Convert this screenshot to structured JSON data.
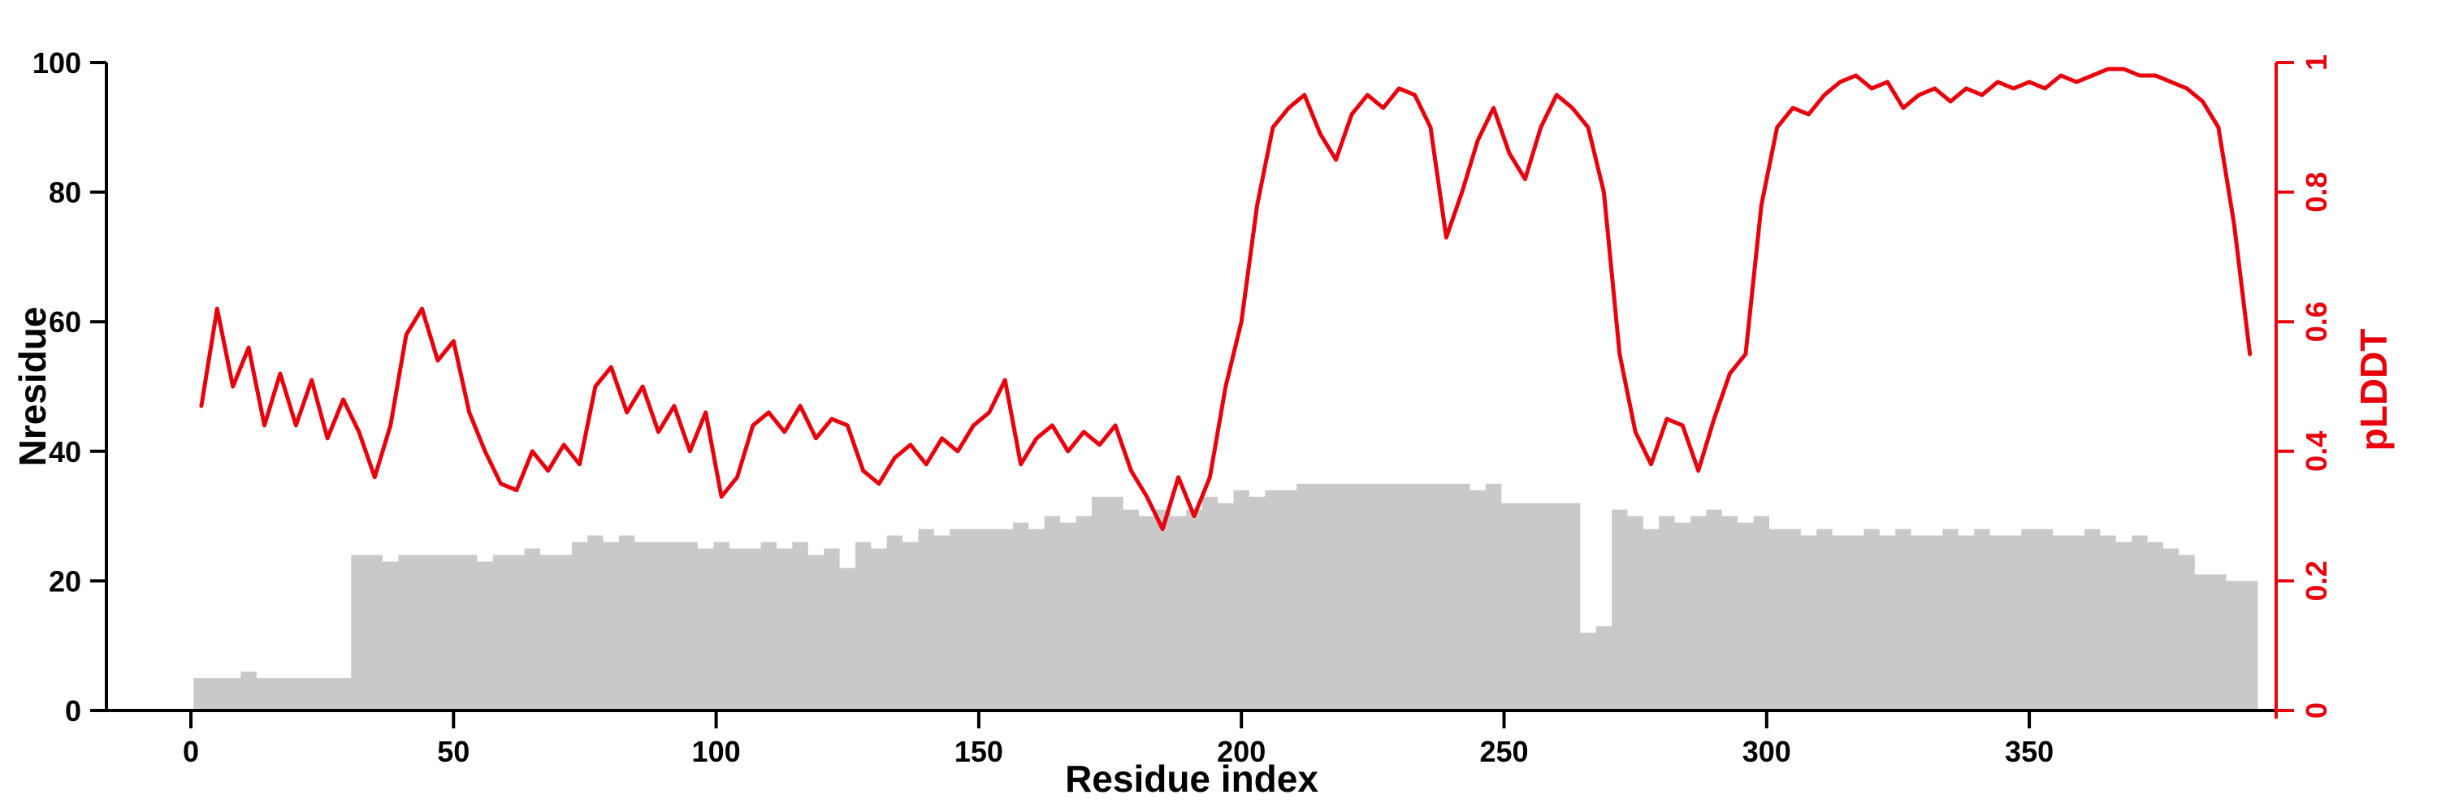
{
  "chart_data": {
    "type": "line",
    "title": "",
    "xlabel": "Residue index",
    "grid": false,
    "legend": "none",
    "x_axis": {
      "ticks": [
        0,
        50,
        100,
        150,
        200,
        250,
        300,
        350
      ],
      "range": [
        -16,
        397
      ]
    },
    "left_axis": {
      "label": "Nresidue",
      "ticks": [
        0,
        20,
        40,
        60,
        80,
        100
      ],
      "range": [
        0,
        100
      ],
      "color": "#000000"
    },
    "right_axis": {
      "label": "pLDDT",
      "ticks": [
        0,
        0.2,
        0.4,
        0.6,
        0.8,
        1
      ],
      "range": [
        0,
        1
      ],
      "color": "#e8000d"
    },
    "x": [
      2,
      5,
      8,
      11,
      14,
      17,
      20,
      23,
      26,
      29,
      32,
      35,
      38,
      41,
      44,
      47,
      50,
      53,
      56,
      59,
      62,
      65,
      68,
      71,
      74,
      77,
      80,
      83,
      86,
      89,
      92,
      95,
      98,
      101,
      104,
      107,
      110,
      113,
      116,
      119,
      122,
      125,
      128,
      131,
      134,
      137,
      140,
      143,
      146,
      149,
      152,
      155,
      158,
      161,
      164,
      167,
      170,
      173,
      176,
      179,
      182,
      185,
      188,
      191,
      194,
      197,
      200,
      203,
      206,
      209,
      212,
      215,
      218,
      221,
      224,
      227,
      230,
      233,
      236,
      239,
      242,
      245,
      248,
      251,
      254,
      257,
      260,
      263,
      266,
      269,
      272,
      275,
      278,
      281,
      284,
      287,
      290,
      293,
      296,
      299,
      302,
      305,
      308,
      311,
      314,
      317,
      320,
      323,
      326,
      329,
      332,
      335,
      338,
      341,
      344,
      347,
      350,
      353,
      356,
      359,
      362,
      365,
      368,
      371,
      374,
      377,
      380,
      383,
      386,
      389,
      392
    ],
    "series": [
      {
        "name": "Nresidue",
        "type": "area-step",
        "axis": "left",
        "color": "#c9c9c9",
        "values": [
          5,
          5,
          5,
          6,
          5,
          5,
          5,
          5,
          5,
          5,
          24,
          24,
          23,
          24,
          24,
          24,
          24,
          24,
          23,
          24,
          24,
          25,
          24,
          24,
          26,
          27,
          26,
          27,
          26,
          26,
          26,
          26,
          25,
          26,
          25,
          25,
          26,
          25,
          26,
          24,
          25,
          22,
          26,
          25,
          27,
          26,
          28,
          27,
          28,
          28,
          28,
          28,
          29,
          28,
          30,
          29,
          30,
          33,
          33,
          31,
          30,
          31,
          30,
          31,
          33,
          32,
          34,
          33,
          34,
          34,
          35,
          35,
          35,
          35,
          35,
          35,
          35,
          35,
          35,
          35,
          35,
          34,
          35,
          32,
          32,
          32,
          32,
          32,
          12,
          13,
          31,
          30,
          28,
          30,
          29,
          30,
          31,
          30,
          29,
          30,
          28,
          28,
          27,
          28,
          27,
          27,
          28,
          27,
          28,
          27,
          27,
          28,
          27,
          28,
          27,
          27,
          28,
          28,
          27,
          27,
          28,
          27,
          26,
          27,
          26,
          25,
          24,
          21,
          21,
          20,
          20
        ]
      },
      {
        "name": "pLDDT",
        "type": "line",
        "axis": "right",
        "color": "#e8000d",
        "values": [
          0.47,
          0.62,
          0.5,
          0.56,
          0.44,
          0.52,
          0.44,
          0.51,
          0.42,
          0.48,
          0.43,
          0.36,
          0.44,
          0.58,
          0.62,
          0.54,
          0.57,
          0.46,
          0.4,
          0.35,
          0.34,
          0.4,
          0.37,
          0.41,
          0.38,
          0.5,
          0.53,
          0.46,
          0.5,
          0.43,
          0.47,
          0.4,
          0.46,
          0.33,
          0.36,
          0.44,
          0.46,
          0.43,
          0.47,
          0.42,
          0.45,
          0.44,
          0.37,
          0.35,
          0.39,
          0.41,
          0.38,
          0.42,
          0.4,
          0.44,
          0.46,
          0.51,
          0.38,
          0.42,
          0.44,
          0.4,
          0.43,
          0.41,
          0.44,
          0.37,
          0.33,
          0.28,
          0.36,
          0.3,
          0.36,
          0.5,
          0.6,
          0.78,
          0.9,
          0.93,
          0.95,
          0.89,
          0.85,
          0.92,
          0.95,
          0.93,
          0.96,
          0.95,
          0.9,
          0.73,
          0.8,
          0.88,
          0.93,
          0.86,
          0.82,
          0.9,
          0.95,
          0.93,
          0.9,
          0.8,
          0.55,
          0.43,
          0.38,
          0.45,
          0.44,
          0.37,
          0.45,
          0.52,
          0.55,
          0.78,
          0.9,
          0.93,
          0.92,
          0.95,
          0.97,
          0.98,
          0.96,
          0.97,
          0.93,
          0.95,
          0.96,
          0.94,
          0.96,
          0.95,
          0.97,
          0.96,
          0.97,
          0.96,
          0.98,
          0.97,
          0.98,
          0.99,
          0.99,
          0.98,
          0.98,
          0.97,
          0.96,
          0.94,
          0.9,
          0.75,
          0.55
        ]
      }
    ]
  }
}
